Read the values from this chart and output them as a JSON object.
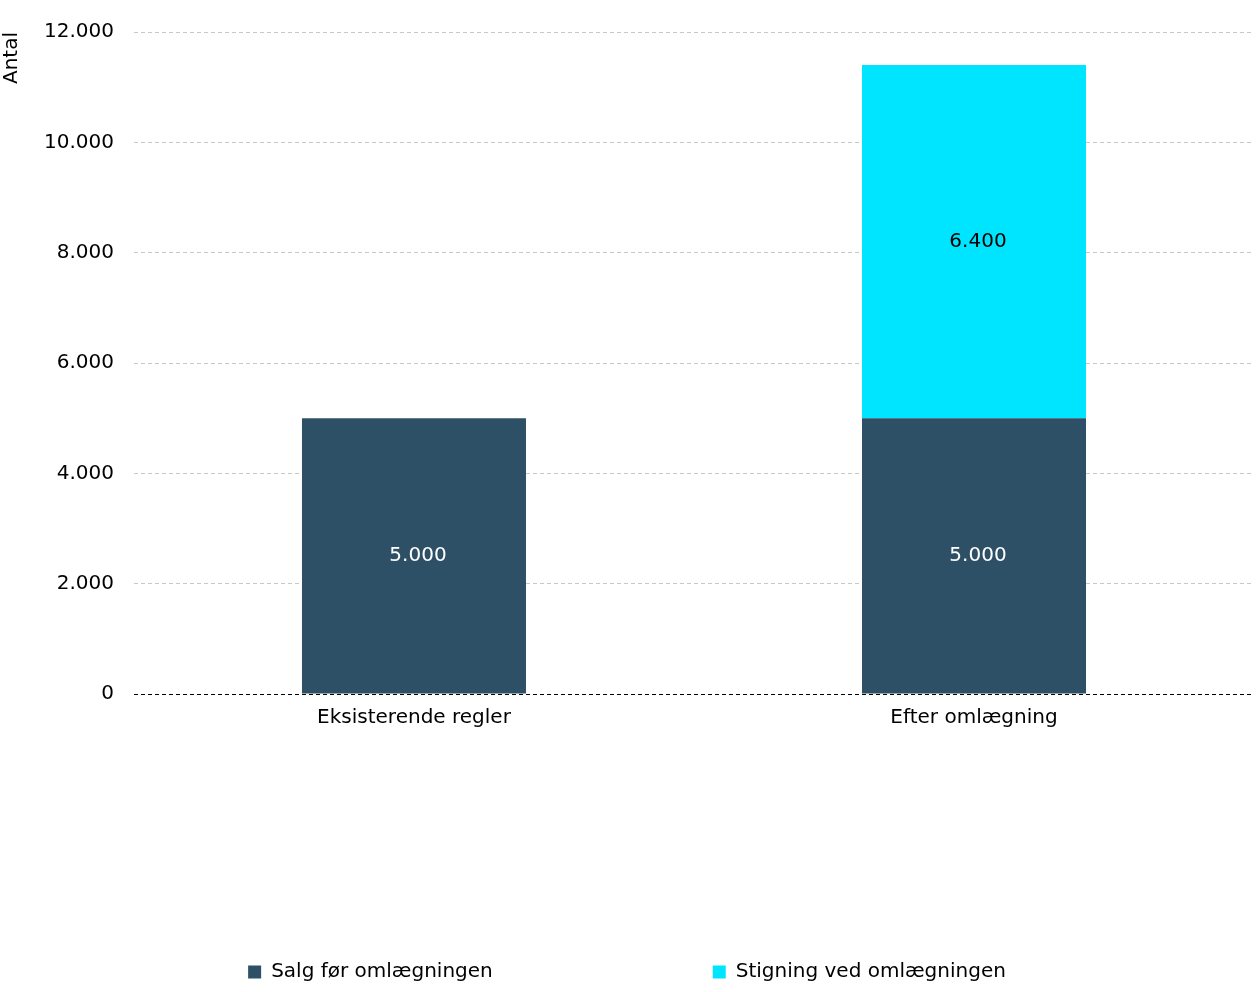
{
  "chart_data": {
    "type": "bar",
    "ylabel": "Antal",
    "stacked": true,
    "categories": [
      "Eksisterende regler",
      "Efter omlægning"
    ],
    "series": [
      {
        "name": "Salg før omlægningen",
        "color": "#2d5066",
        "values": [
          5000,
          5000
        ],
        "value_labels": [
          "5.000",
          "5.000"
        ]
      },
      {
        "name": "Stigning ved omlægningen",
        "color": "#00e5ff",
        "values": [
          null,
          6400
        ],
        "value_labels": [
          null,
          "6.400"
        ]
      }
    ],
    "ylim": [
      0,
      12000
    ],
    "yticks": [
      {
        "value": 0,
        "label": "0"
      },
      {
        "value": 2000,
        "label": "2.000"
      },
      {
        "value": 4000,
        "label": "4.000"
      },
      {
        "value": 6000,
        "label": "6.000"
      },
      {
        "value": 8000,
        "label": "8.000"
      },
      {
        "value": 10000,
        "label": "10.000"
      },
      {
        "value": 12000,
        "label": "12.000"
      }
    ],
    "grid": "y",
    "legend": "bottom"
  }
}
